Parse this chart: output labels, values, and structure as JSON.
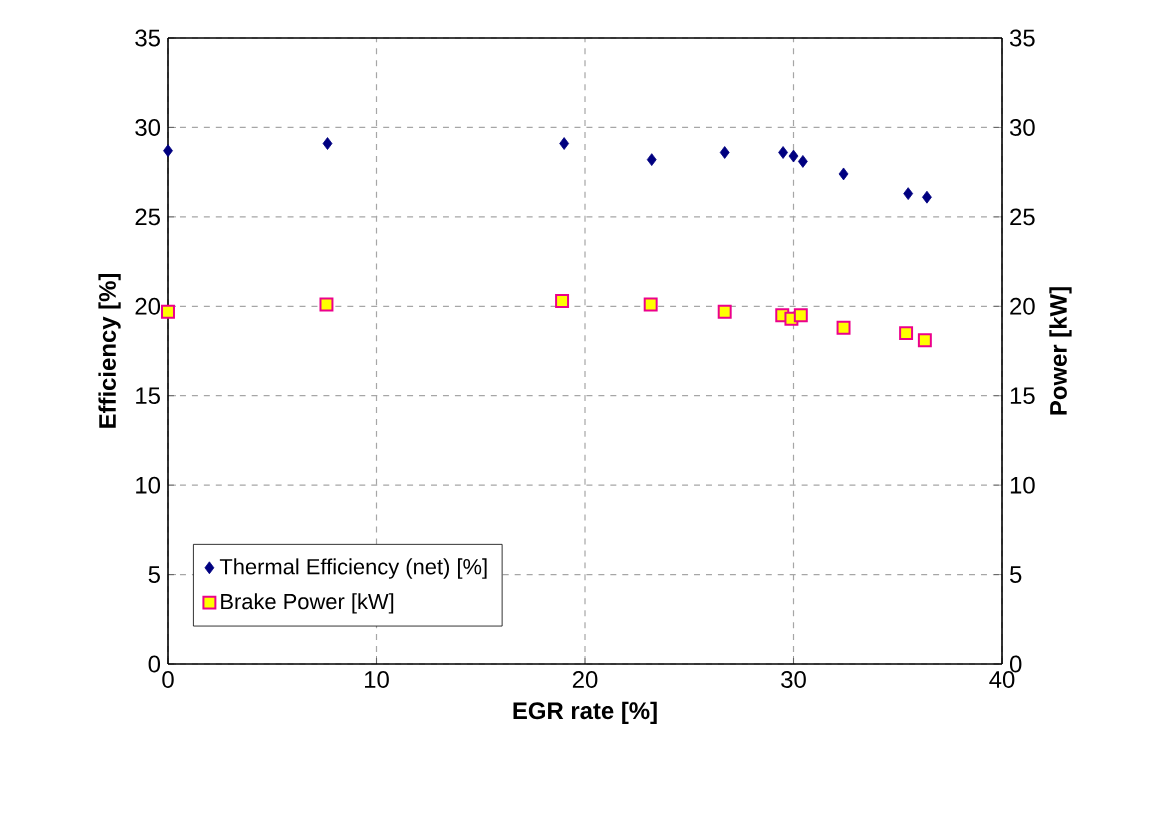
{
  "chart_data": {
    "type": "scatter",
    "xlabel": "EGR rate [%]",
    "ylabel": "Efficiency [%]",
    "y2label": "Power [kW]",
    "xlim": [
      0,
      40
    ],
    "xticks": [
      0,
      10,
      20,
      30,
      40
    ],
    "ylim": [
      0,
      35
    ],
    "yticks": [
      0,
      5,
      10,
      15,
      20,
      25,
      30,
      35
    ],
    "y2lim": [
      0,
      35
    ],
    "y2ticks": [
      0,
      5,
      10,
      15,
      20,
      25,
      30,
      35
    ],
    "grid": true,
    "legend": "bottom left",
    "series": [
      {
        "name": "Thermal Efficiency (net) [%]",
        "color": "#000080",
        "marker": "diamond",
        "x": [
          0,
          7.65,
          19.0,
          23.2,
          26.7,
          29.5,
          30.0,
          30.45,
          32.4,
          35.5,
          36.4
        ],
        "values": [
          28.7,
          29.1,
          29.1,
          28.2,
          28.6,
          28.6,
          28.4,
          28.1,
          27.4,
          26.3,
          26.1
        ]
      },
      {
        "name": "Brake Power [kW]",
        "color": "#ffff00",
        "marker": "square",
        "axis": "y2",
        "x": [
          0,
          7.6,
          18.9,
          23.15,
          26.7,
          29.46,
          29.9,
          30.35,
          32.4,
          35.4,
          36.3
        ],
        "values": [
          19.7,
          20.1,
          20.3,
          20.1,
          19.7,
          19.5,
          19.3,
          19.5,
          18.8,
          18.5,
          18.1
        ]
      }
    ]
  }
}
